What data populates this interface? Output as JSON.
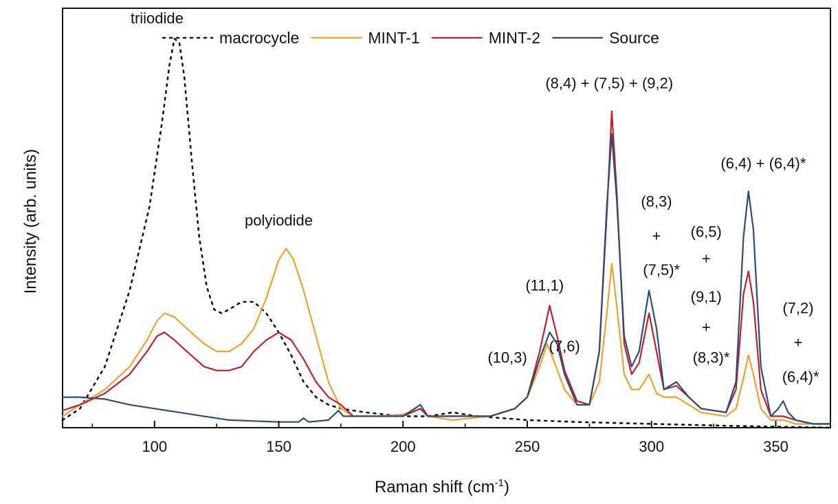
{
  "chart_data": {
    "type": "line",
    "xlabel": "Raman shift (cm",
    "xlabel_sup": "-1",
    "xlabel_end": ")",
    "ylabel": "Intensity (arb. units)",
    "xlim": [
      63,
      372
    ],
    "ylim": [
      0,
      1.1
    ],
    "x_ticks": [
      100,
      150,
      200,
      250,
      300,
      350
    ],
    "x_minor_ticks": [
      75,
      125,
      175,
      225,
      275,
      325
    ],
    "grid": false,
    "legend_position": "top",
    "series": [
      {
        "name": "macrocycle",
        "color": "#111111",
        "dash": "dot",
        "points": [
          [
            63,
            0.02
          ],
          [
            70,
            0.05
          ],
          [
            80,
            0.16
          ],
          [
            90,
            0.36
          ],
          [
            98,
            0.58
          ],
          [
            103,
            0.8
          ],
          [
            106,
            0.95
          ],
          [
            108,
            1.02
          ],
          [
            110,
            1.01
          ],
          [
            112,
            0.92
          ],
          [
            115,
            0.7
          ],
          [
            118,
            0.5
          ],
          [
            121,
            0.37
          ],
          [
            124,
            0.31
          ],
          [
            127,
            0.3
          ],
          [
            130,
            0.31
          ],
          [
            135,
            0.33
          ],
          [
            140,
            0.33
          ],
          [
            145,
            0.3
          ],
          [
            150,
            0.25
          ],
          [
            155,
            0.19
          ],
          [
            160,
            0.12
          ],
          [
            165,
            0.08
          ],
          [
            170,
            0.06
          ],
          [
            175,
            0.05
          ],
          [
            185,
            0.04
          ],
          [
            200,
            0.03
          ],
          [
            210,
            0.03
          ],
          [
            220,
            0.04
          ],
          [
            230,
            0.03
          ],
          [
            250,
            0.02
          ],
          [
            270,
            0.015
          ],
          [
            300,
            0.01
          ],
          [
            330,
            0.005
          ],
          [
            372,
            0.0
          ]
        ]
      },
      {
        "name": "MINT-1",
        "color": "#f0a030",
        "dash": "solid",
        "points": [
          [
            63,
            0.03
          ],
          [
            70,
            0.06
          ],
          [
            80,
            0.1
          ],
          [
            90,
            0.16
          ],
          [
            97,
            0.23
          ],
          [
            101,
            0.28
          ],
          [
            104,
            0.3
          ],
          [
            108,
            0.29
          ],
          [
            113,
            0.26
          ],
          [
            120,
            0.22
          ],
          [
            125,
            0.2
          ],
          [
            130,
            0.2
          ],
          [
            135,
            0.22
          ],
          [
            140,
            0.26
          ],
          [
            145,
            0.34
          ],
          [
            150,
            0.44
          ],
          [
            153,
            0.47
          ],
          [
            156,
            0.44
          ],
          [
            160,
            0.36
          ],
          [
            165,
            0.24
          ],
          [
            170,
            0.12
          ],
          [
            175,
            0.05
          ],
          [
            180,
            0.03
          ],
          [
            190,
            0.03
          ],
          [
            200,
            0.035
          ],
          [
            207,
            0.05
          ],
          [
            210,
            0.03
          ],
          [
            220,
            0.02
          ],
          [
            235,
            0.03
          ],
          [
            245,
            0.05
          ],
          [
            250,
            0.08
          ],
          [
            255,
            0.16
          ],
          [
            258,
            0.22
          ],
          [
            261,
            0.17
          ],
          [
            265,
            0.1
          ],
          [
            270,
            0.06
          ],
          [
            275,
            0.06
          ],
          [
            279,
            0.12
          ],
          [
            282,
            0.3
          ],
          [
            284,
            0.43
          ],
          [
            286,
            0.32
          ],
          [
            289,
            0.14
          ],
          [
            292,
            0.1
          ],
          [
            295,
            0.1
          ],
          [
            299,
            0.14
          ],
          [
            302,
            0.09
          ],
          [
            305,
            0.08
          ],
          [
            310,
            0.08
          ],
          [
            315,
            0.06
          ],
          [
            320,
            0.04
          ],
          [
            330,
            0.03
          ],
          [
            334,
            0.05
          ],
          [
            337,
            0.13
          ],
          [
            339,
            0.19
          ],
          [
            341,
            0.14
          ],
          [
            344,
            0.05
          ],
          [
            348,
            0.02
          ],
          [
            353,
            0.02
          ],
          [
            358,
            0.01
          ],
          [
            365,
            0.01
          ],
          [
            372,
            0.01
          ]
        ]
      },
      {
        "name": "MINT-2",
        "color": "#c0202c",
        "dash": "solid",
        "points": [
          [
            63,
            0.045
          ],
          [
            70,
            0.06
          ],
          [
            80,
            0.09
          ],
          [
            90,
            0.14
          ],
          [
            97,
            0.2
          ],
          [
            101,
            0.24
          ],
          [
            104,
            0.25
          ],
          [
            108,
            0.23
          ],
          [
            113,
            0.2
          ],
          [
            120,
            0.16
          ],
          [
            125,
            0.15
          ],
          [
            130,
            0.15
          ],
          [
            135,
            0.16
          ],
          [
            140,
            0.2
          ],
          [
            145,
            0.23
          ],
          [
            150,
            0.25
          ],
          [
            155,
            0.23
          ],
          [
            160,
            0.18
          ],
          [
            165,
            0.12
          ],
          [
            170,
            0.08
          ],
          [
            175,
            0.06
          ],
          [
            180,
            0.03
          ],
          [
            190,
            0.03
          ],
          [
            200,
            0.03
          ],
          [
            207,
            0.05
          ],
          [
            210,
            0.03
          ],
          [
            220,
            0.03
          ],
          [
            235,
            0.03
          ],
          [
            245,
            0.05
          ],
          [
            250,
            0.08
          ],
          [
            255,
            0.2
          ],
          [
            259,
            0.32
          ],
          [
            262,
            0.24
          ],
          [
            265,
            0.15
          ],
          [
            270,
            0.07
          ],
          [
            275,
            0.06
          ],
          [
            279,
            0.2
          ],
          [
            282,
            0.56
          ],
          [
            284,
            0.83
          ],
          [
            286,
            0.62
          ],
          [
            289,
            0.22
          ],
          [
            292,
            0.14
          ],
          [
            295,
            0.17
          ],
          [
            299,
            0.3
          ],
          [
            302,
            0.2
          ],
          [
            305,
            0.1
          ],
          [
            310,
            0.11
          ],
          [
            315,
            0.08
          ],
          [
            320,
            0.05
          ],
          [
            330,
            0.04
          ],
          [
            334,
            0.1
          ],
          [
            337,
            0.35
          ],
          [
            339,
            0.41
          ],
          [
            341,
            0.33
          ],
          [
            344,
            0.1
          ],
          [
            348,
            0.03
          ],
          [
            353,
            0.03
          ],
          [
            358,
            0.02
          ],
          [
            365,
            0.01
          ],
          [
            372,
            0.01
          ]
        ]
      },
      {
        "name": "Source",
        "color": "#2c4a7a",
        "dash": "solid",
        "points": [
          [
            63,
            0.08
          ],
          [
            70,
            0.08
          ],
          [
            80,
            0.075
          ],
          [
            90,
            0.06
          ],
          [
            100,
            0.05
          ],
          [
            110,
            0.04
          ],
          [
            120,
            0.03
          ],
          [
            130,
            0.02
          ],
          [
            150,
            0.015
          ],
          [
            158,
            0.015
          ],
          [
            160,
            0.025
          ],
          [
            162,
            0.015
          ],
          [
            170,
            0.02
          ],
          [
            174,
            0.045
          ],
          [
            176,
            0.03
          ],
          [
            180,
            0.03
          ],
          [
            190,
            0.03
          ],
          [
            200,
            0.03
          ],
          [
            207,
            0.06
          ],
          [
            210,
            0.03
          ],
          [
            220,
            0.03
          ],
          [
            235,
            0.03
          ],
          [
            245,
            0.05
          ],
          [
            250,
            0.08
          ],
          [
            255,
            0.18
          ],
          [
            259,
            0.25
          ],
          [
            262,
            0.22
          ],
          [
            265,
            0.14
          ],
          [
            270,
            0.06
          ],
          [
            275,
            0.06
          ],
          [
            279,
            0.2
          ],
          [
            282,
            0.58
          ],
          [
            284,
            0.77
          ],
          [
            286,
            0.6
          ],
          [
            289,
            0.24
          ],
          [
            292,
            0.16
          ],
          [
            295,
            0.2
          ],
          [
            299,
            0.36
          ],
          [
            302,
            0.26
          ],
          [
            305,
            0.1
          ],
          [
            310,
            0.12
          ],
          [
            315,
            0.08
          ],
          [
            320,
            0.05
          ],
          [
            330,
            0.04
          ],
          [
            334,
            0.12
          ],
          [
            337,
            0.5
          ],
          [
            339,
            0.62
          ],
          [
            341,
            0.52
          ],
          [
            344,
            0.16
          ],
          [
            348,
            0.03
          ],
          [
            351,
            0.05
          ],
          [
            353,
            0.07
          ],
          [
            355,
            0.04
          ],
          [
            358,
            0.02
          ],
          [
            365,
            0.01
          ],
          [
            372,
            0.01
          ]
        ]
      }
    ],
    "annotations": [
      {
        "text": "triiodide",
        "x": 101,
        "y": 1.06
      },
      {
        "text": "polyiodide",
        "x": 150,
        "y": 0.53
      },
      {
        "text": "(8,4) + (7,5) + (9,2)",
        "x": 283,
        "y": 0.89
      },
      {
        "text": "(11,1)",
        "x": 257,
        "y": 0.36
      },
      {
        "text": "(10,3)",
        "x": 242,
        "y": 0.17
      },
      {
        "text": "(7,6)",
        "x": 265,
        "y": 0.2
      },
      {
        "text": "(8,3)",
        "x": 302,
        "y": 0.58
      },
      {
        "text": "+",
        "x": 302,
        "y": 0.49
      },
      {
        "text": "(7,5)*",
        "x": 304,
        "y": 0.4
      },
      {
        "text": "(6,5)",
        "x": 322,
        "y": 0.5
      },
      {
        "text": "+",
        "x": 322,
        "y": 0.43
      },
      {
        "text": "(9,1)",
        "x": 322,
        "y": 0.33
      },
      {
        "text": "+",
        "x": 322,
        "y": 0.25
      },
      {
        "text": "(8,3)*",
        "x": 324,
        "y": 0.17
      },
      {
        "text": "(6,4) + (6,4)*",
        "x": 345,
        "y": 0.68
      },
      {
        "text": "(7,2)",
        "x": 359,
        "y": 0.3
      },
      {
        "text": "+",
        "x": 359,
        "y": 0.21
      },
      {
        "text": "(6,4)*",
        "x": 360,
        "y": 0.12
      }
    ]
  }
}
